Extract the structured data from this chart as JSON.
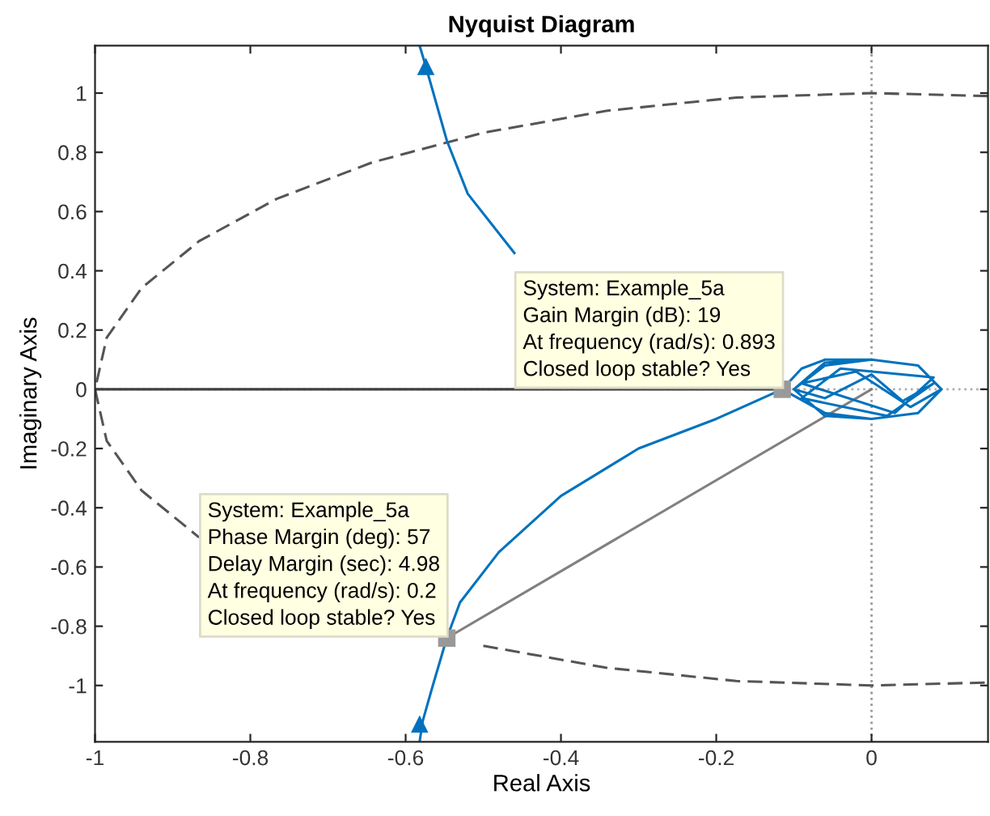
{
  "chart_data": {
    "type": "line",
    "title": "Nyquist Diagram",
    "xlabel": "Real Axis",
    "ylabel": "Imaginary Axis",
    "xlim": [
      -1,
      0.15
    ],
    "ylim": [
      -1.19,
      1.16
    ],
    "xticks": [
      -1,
      -0.8,
      -0.6,
      -0.4,
      -0.2,
      0
    ],
    "yticks": [
      -1,
      -0.8,
      -0.6,
      -0.4,
      -0.2,
      0,
      0.2,
      0.4,
      0.6,
      0.8,
      1
    ],
    "grid": false,
    "legend": false,
    "series": [
      {
        "color": "#555555",
        "line_style": "dashed",
        "x": [
          0.15,
          0,
          -0.174,
          -0.342,
          -0.5,
          -0.643,
          -0.766,
          -0.866,
          -0.94,
          -0.985,
          -1,
          -0.985,
          -0.94,
          -0.866,
          -0.766,
          -0.643,
          -0.5,
          -0.342,
          -0.174,
          0,
          0.15
        ],
        "values": [
          0.99,
          1,
          0.985,
          0.94,
          0.866,
          0.766,
          0.643,
          0.5,
          0.342,
          0.174,
          0,
          -0.174,
          -0.342,
          -0.5,
          null,
          null,
          -0.866,
          -0.94,
          -0.985,
          -1,
          -0.99
        ]
      },
      {
        "color": "#404040",
        "line_style": "solid",
        "x": [
          -1,
          -0.115
        ],
        "values": [
          0,
          0
        ]
      },
      {
        "color": "#808080",
        "line_style": "solid",
        "x": [
          0,
          -0.547
        ],
        "values": [
          0,
          -0.84
        ]
      },
      {
        "color": "#0072bd",
        "line_style": "solid",
        "x": [
          -0.582,
          -0.574,
          -0.547,
          -0.52,
          -0.46,
          -0.38,
          -0.28,
          -0.2,
          -0.115,
          -0.09,
          -0.06,
          0,
          0.06,
          0.09,
          0.06,
          0,
          -0.06,
          -0.1,
          -0.06,
          0,
          0.06,
          0.09,
          0.05,
          -0.02,
          -0.09,
          0.03,
          0.08,
          -0.04,
          -0.09,
          0.02,
          0.08,
          0.04,
          0,
          -0.06,
          -0.1,
          -0.06,
          0,
          0.06,
          0.09,
          0.06,
          0,
          -0.06,
          -0.115,
          -0.2,
          -0.3,
          -0.4,
          -0.48,
          -0.53,
          -0.547,
          -0.565,
          -0.578,
          -0.582
        ],
        "values": [
          1.16,
          1.09,
          0.84,
          0.66,
          0.46,
          null,
          null,
          null,
          0,
          0.07,
          0.1,
          0.1,
          0.08,
          0,
          -0.08,
          -0.1,
          -0.09,
          0,
          0.09,
          0.1,
          0.08,
          0,
          -0.06,
          0.06,
          0.02,
          -0.08,
          0.04,
          0.07,
          -0.03,
          -0.09,
          0.02,
          -0.04,
          0.05,
          -0.03,
          0,
          0.08,
          0.1,
          0.08,
          0,
          -0.08,
          -0.1,
          -0.08,
          0,
          -0.1,
          -0.2,
          -0.36,
          -0.55,
          -0.72,
          -0.84,
          -1.0,
          -1.12,
          -1.19
        ]
      },
      {
        "type": "scatter",
        "color": "#0072bd",
        "marker": "triangle",
        "x": [
          -0.574,
          -0.582
        ],
        "values": [
          1.09,
          -1.13
        ]
      },
      {
        "type": "scatter",
        "color": "#999999",
        "marker": "square",
        "x": [
          -0.115,
          -0.547
        ],
        "values": [
          0,
          -0.84
        ]
      }
    ],
    "ref_lines": [
      {
        "axis": "x",
        "value": 0,
        "color": "#999999",
        "line_style": "dotted"
      },
      {
        "axis": "y",
        "value": 0,
        "color": "#b0b0b0",
        "line_style": "dotted"
      }
    ],
    "annotations": [
      {
        "text": "System: Example_5a\nGain Margin (dB): 19\nAt frequency (rad/s): 0.893\nClosed loop stable? Yes",
        "x": -0.115,
        "y": 0
      },
      {
        "text": "System: Example_5a\nPhase Margin (deg): 57\nDelay Margin (sec): 4.98\nAt frequency (rad/s): 0.2\nClosed loop stable? Yes",
        "x": -0.547,
        "y": -0.84
      }
    ]
  }
}
